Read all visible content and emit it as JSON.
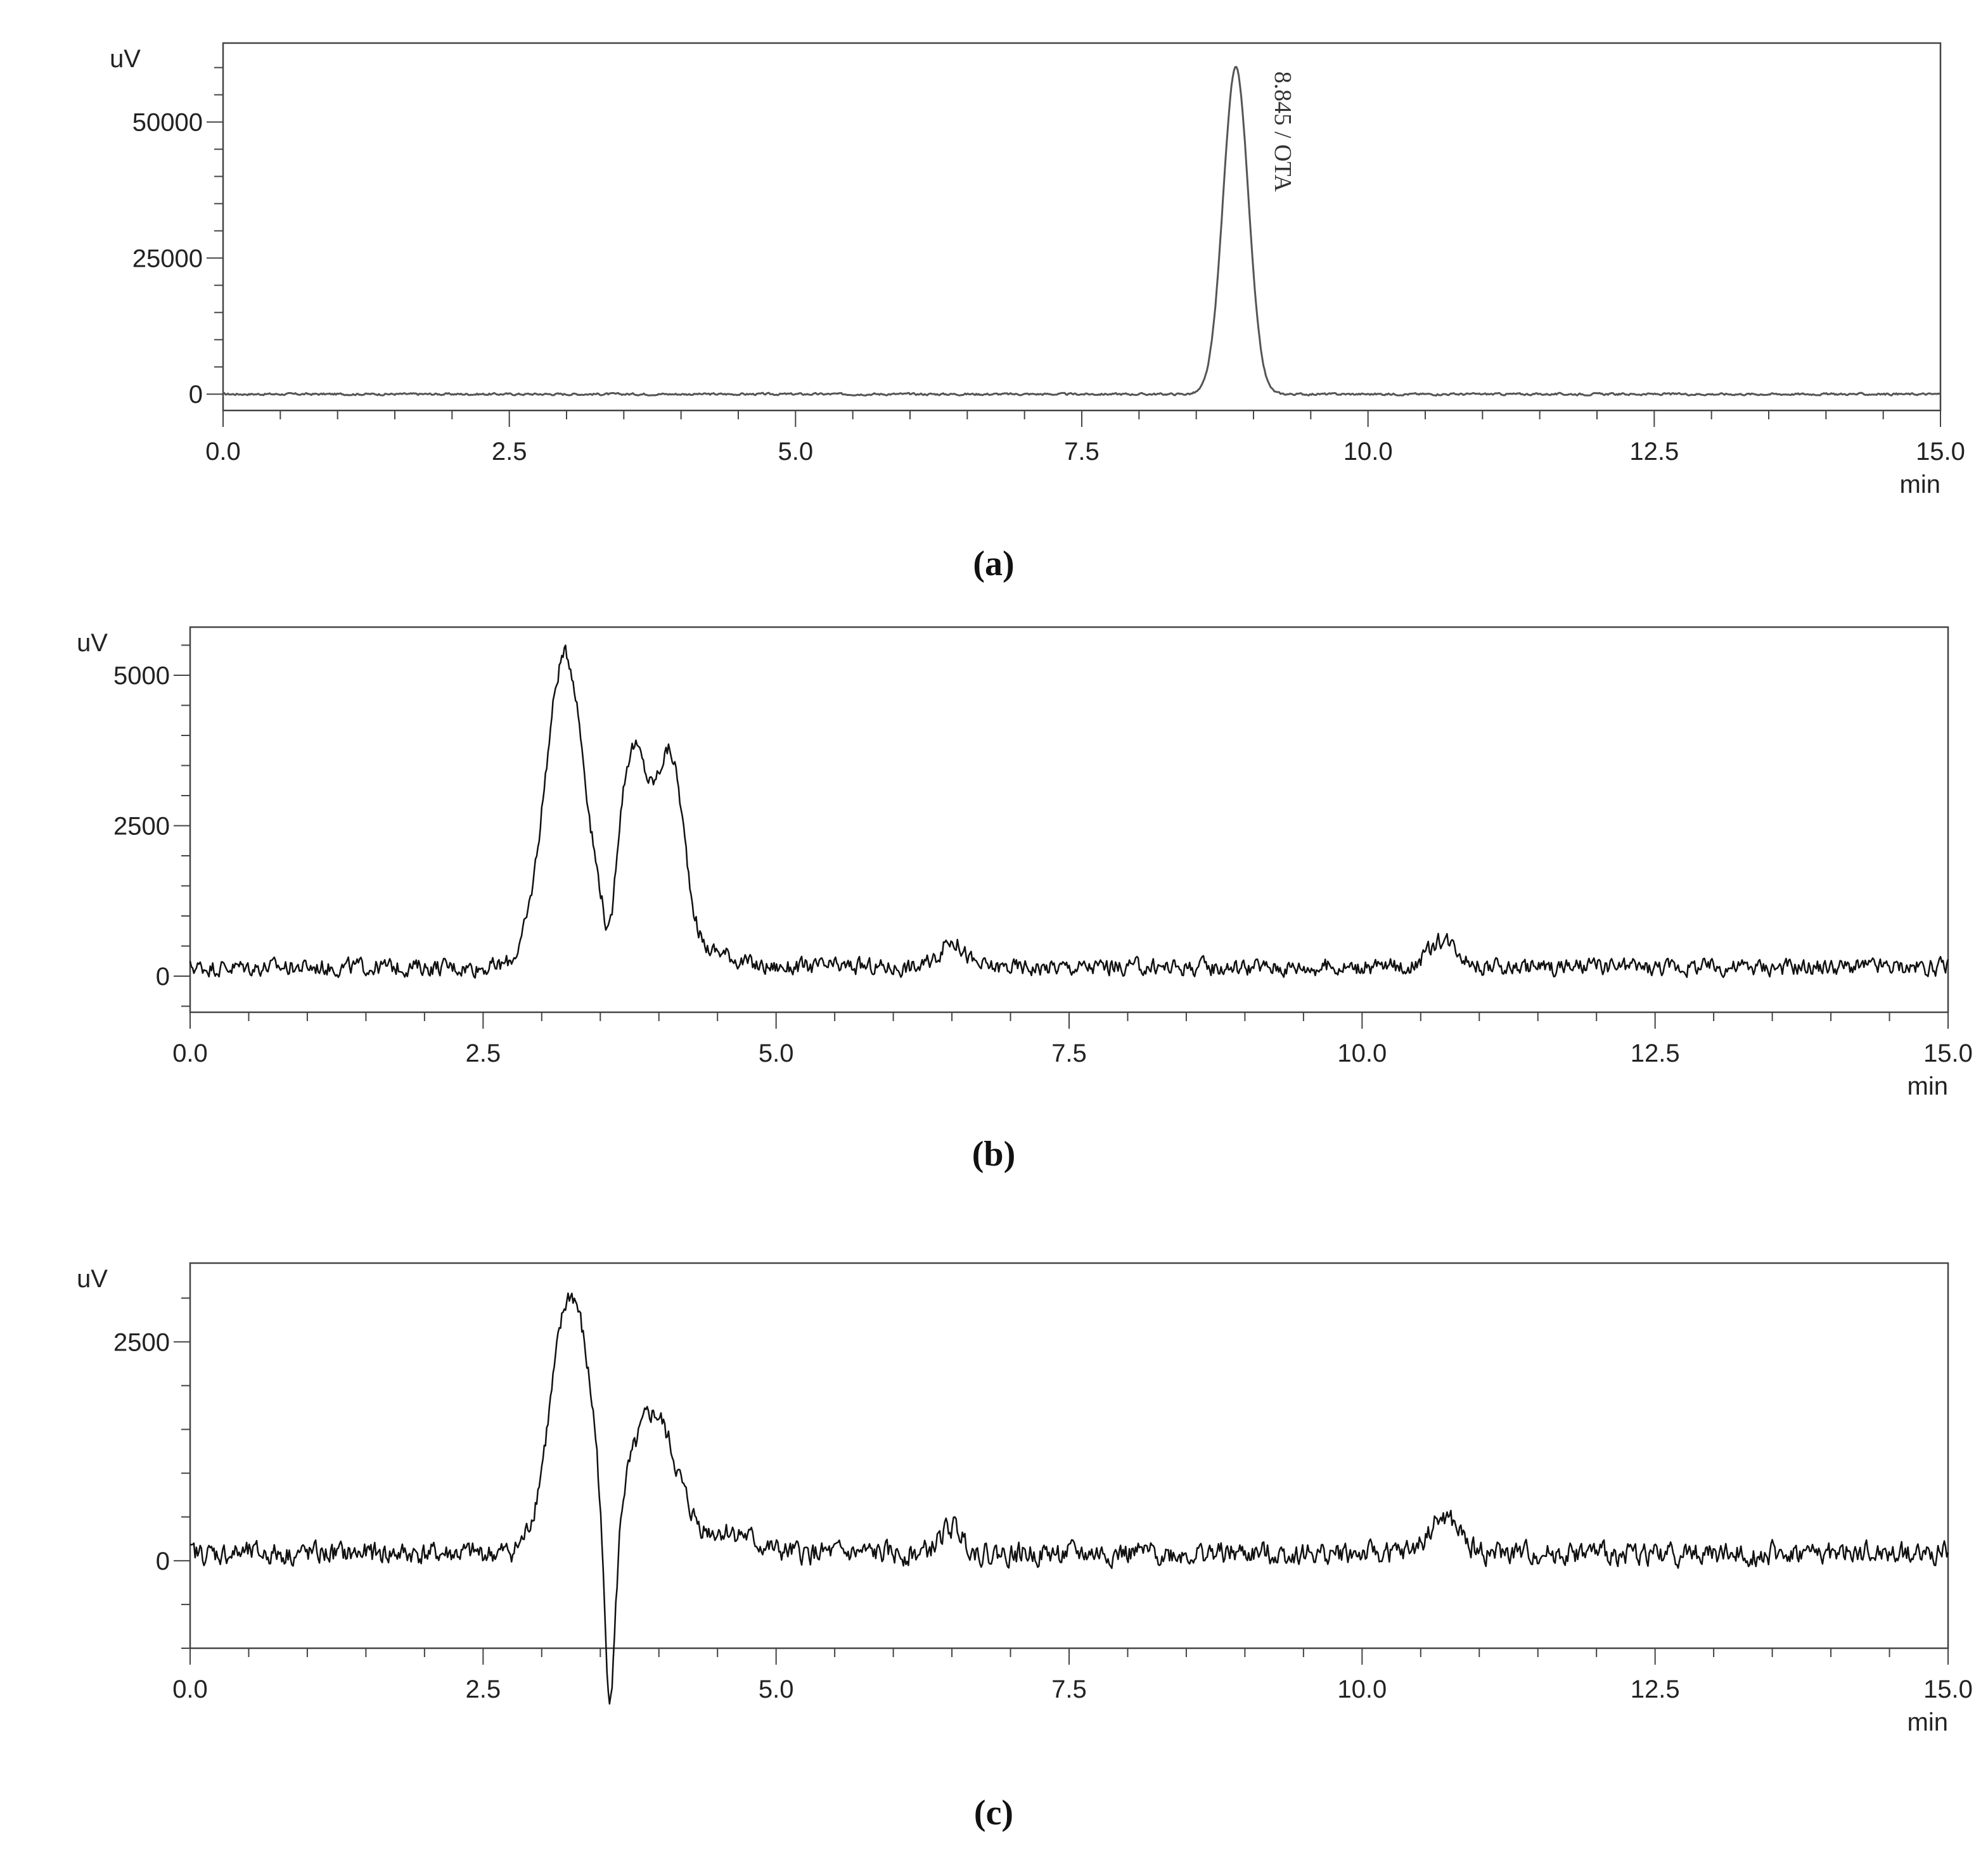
{
  "chart_data": [
    {
      "type": "line",
      "panel_label": "(a)",
      "y_unit_label": "uV",
      "x_unit_label": "min",
      "xlim": [
        0,
        15
      ],
      "ylim": [
        -3000,
        64500
      ],
      "x_ticks": [
        "0.0",
        "2.5",
        "5.0",
        "7.5",
        "10.0",
        "12.5",
        "15.0"
      ],
      "y_ticks": [
        "0",
        "25000",
        "50000"
      ],
      "grid": false,
      "annotations": [
        {
          "text": "8.845 / OTA",
          "x": 8.845,
          "y": 60000
        }
      ],
      "series": [
        {
          "color": "#555555",
          "baseline": 0,
          "noise": 300,
          "peaks": [
            [
              8.845,
              60000,
              0.11
            ]
          ]
        }
      ]
    },
    {
      "type": "line",
      "panel_label": "(b)",
      "y_unit_label": "uV",
      "x_unit_label": "min",
      "xlim": [
        0,
        15
      ],
      "ylim": [
        -600,
        5800
      ],
      "x_ticks": [
        "0.0",
        "2.5",
        "5.0",
        "7.5",
        "10.0",
        "12.5",
        "15.0"
      ],
      "y_ticks": [
        "0",
        "2500",
        "5000"
      ],
      "grid": false,
      "series": [
        {
          "color": "#111111",
          "baseline": 150,
          "noise": 220,
          "peaks": [
            [
              3.2,
              5200,
              0.17
            ],
            [
              3.78,
              3550,
              0.13
            ],
            [
              4.1,
              3400,
              0.12
            ],
            [
              6.5,
              450,
              0.1
            ],
            [
              10.7,
              450,
              0.13
            ],
            [
              4.5,
              250,
              0.15
            ]
          ],
          "dips": [
            [
              3.58,
              900,
              0.04
            ]
          ]
        }
      ]
    },
    {
      "type": "line",
      "panel_label": "(c)",
      "y_unit_label": "uV",
      "x_unit_label": "min",
      "xlim": [
        0,
        15
      ],
      "ylim": [
        -1000,
        3400
      ],
      "x_ticks": [
        "0.0",
        "2.5",
        "5.0",
        "7.5",
        "10.0",
        "12.5",
        "15.0"
      ],
      "y_ticks": [
        "0",
        "2500"
      ],
      "grid": false,
      "series": [
        {
          "color": "#111111",
          "baseline": 80,
          "noise": 200,
          "peaks": [
            [
              3.25,
              2950,
              0.17
            ],
            [
              3.95,
              1600,
              0.2
            ],
            [
              6.5,
              300,
              0.1
            ],
            [
              10.7,
              400,
              0.13
            ],
            [
              4.6,
              250,
              0.2
            ]
          ],
          "dips": [
            [
              3.58,
              2300,
              0.05
            ]
          ]
        }
      ]
    }
  ]
}
